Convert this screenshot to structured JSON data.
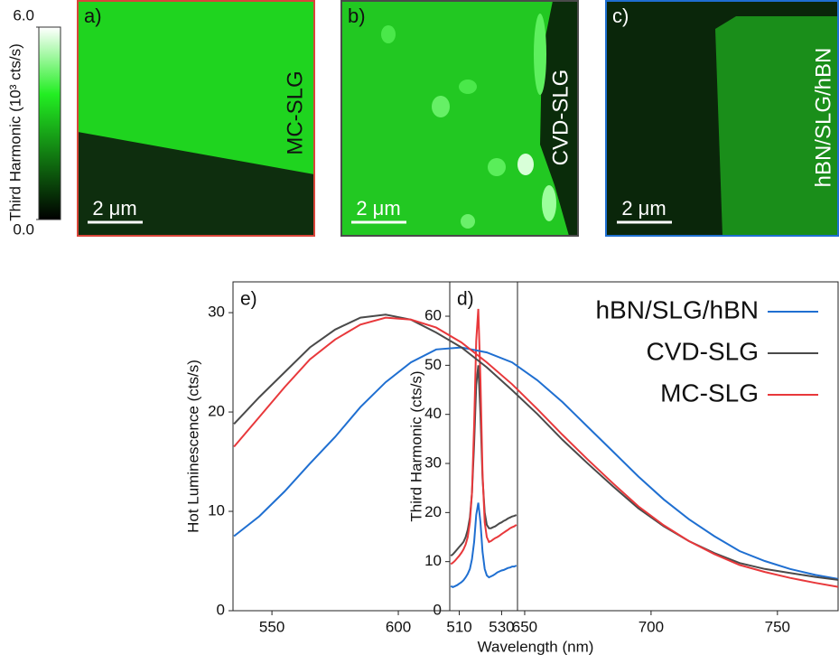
{
  "chart_data": [
    {
      "type": "colorbar",
      "label": "Third Harmonic (10³ cts/s)",
      "ylim": [
        0,
        6
      ],
      "yticks": [
        {
          "value": 0,
          "label": "0.0"
        },
        {
          "value": 6,
          "label": "6.0"
        }
      ]
    },
    {
      "type": "image",
      "panel": "a)",
      "label": "MC-SLG",
      "scale_bar": "2 μm",
      "border_color": "#d9453a"
    },
    {
      "type": "image",
      "panel": "b)",
      "label": "CVD-SLG",
      "scale_bar": "2 μm",
      "border_color": "#4a4a4a"
    },
    {
      "type": "image",
      "panel": "c)",
      "label": "hBN/SLG/hBN",
      "scale_bar": "2 μm",
      "border_color": "#1f6fd1"
    },
    {
      "type": "line",
      "panel": "d)",
      "y_label": "Third Harmonic (cts/s)",
      "xlim": [
        505.5,
        537.5
      ],
      "xticks": [
        510,
        530
      ],
      "ylim": [
        0,
        67
      ],
      "yticks": [
        0,
        10,
        20,
        30,
        40,
        50,
        60
      ],
      "x": [
        506,
        507,
        508,
        509,
        510,
        511,
        512,
        513,
        514,
        515,
        516,
        517,
        518,
        519,
        520,
        521,
        522,
        523,
        524,
        525,
        526,
        527,
        528,
        529,
        530,
        531,
        532,
        533,
        534,
        535,
        536,
        537
      ],
      "series": [
        {
          "name": "hBN/SLG/hBN",
          "color": "#1f6fd1",
          "values": [
            5,
            4.8,
            5,
            5.2,
            5.5,
            5.8,
            6.2,
            6.8,
            7.5,
            8.5,
            10.5,
            14,
            19.5,
            22,
            18,
            12,
            8.5,
            7.2,
            6.8,
            7,
            7.2,
            7.5,
            7.8,
            8,
            8.2,
            8.3,
            8.5,
            8.7,
            8.8,
            9,
            9,
            9.2
          ]
        },
        {
          "name": "CVD-SLG",
          "color": "#4a4a4a",
          "values": [
            11.2,
            11.5,
            12,
            12.5,
            13,
            13.5,
            14,
            15,
            16.5,
            19,
            24,
            34,
            46,
            50,
            40,
            27,
            20,
            17.5,
            16.8,
            16.8,
            17,
            17.2,
            17.5,
            17.8,
            18,
            18.3,
            18.5,
            18.8,
            19,
            19.2,
            19.3,
            19.5
          ]
        },
        {
          "name": "MC-SLG",
          "color": "#e8383b",
          "values": [
            9.5,
            9.8,
            10.2,
            10.7,
            11.2,
            11.8,
            12.5,
            13.5,
            15,
            18,
            24,
            38,
            55,
            61.5,
            47,
            28,
            18,
            15,
            14,
            14.2,
            14.5,
            14.8,
            15,
            15.3,
            15.6,
            15.9,
            16.2,
            16.5,
            16.8,
            17,
            17.2,
            17.5
          ]
        }
      ]
    },
    {
      "type": "line",
      "panel": "e)",
      "x_label": "Wavelength (nm)",
      "y_label": "Hot Luminescence (cts/s)",
      "xlim": [
        534.6,
        774
      ],
      "xticks": [
        550,
        600,
        650,
        700,
        750
      ],
      "ylim": [
        0,
        33.1
      ],
      "yticks": [
        0,
        10,
        20,
        30
      ],
      "legend": "upper right",
      "x": [
        535,
        545,
        555,
        565,
        575,
        585,
        595,
        605,
        615,
        625,
        635,
        645,
        655,
        665,
        675,
        685,
        695,
        705,
        715,
        725,
        735,
        745,
        755,
        765,
        774
      ],
      "series": [
        {
          "name": "hBN/SLG/hBN",
          "color": "#1f6fd1",
          "values": [
            7.5,
            9.5,
            12,
            14.8,
            17.5,
            20.5,
            23,
            25,
            26.3,
            26.5,
            26,
            25,
            23.2,
            21,
            18.5,
            16,
            13.5,
            11.2,
            9.2,
            7.5,
            6,
            5,
            4.2,
            3.6,
            3.2
          ]
        },
        {
          "name": "CVD-SLG",
          "color": "#4a4a4a",
          "values": [
            18.8,
            21.5,
            24,
            26.5,
            28.3,
            29.5,
            29.8,
            29.3,
            28,
            26.5,
            24.5,
            22.2,
            19.8,
            17.2,
            14.8,
            12.5,
            10.3,
            8.5,
            7,
            5.8,
            4.8,
            4.2,
            3.8,
            3.4,
            3.1
          ]
        },
        {
          "name": "MC-SLG",
          "color": "#e8383b",
          "values": [
            16.5,
            19.5,
            22.5,
            25.3,
            27.3,
            28.8,
            29.5,
            29.3,
            28.5,
            27,
            25,
            22.8,
            20.3,
            17.7,
            15.2,
            12.8,
            10.5,
            8.6,
            7,
            5.7,
            4.6,
            3.9,
            3.3,
            2.8,
            2.4
          ]
        }
      ]
    }
  ]
}
